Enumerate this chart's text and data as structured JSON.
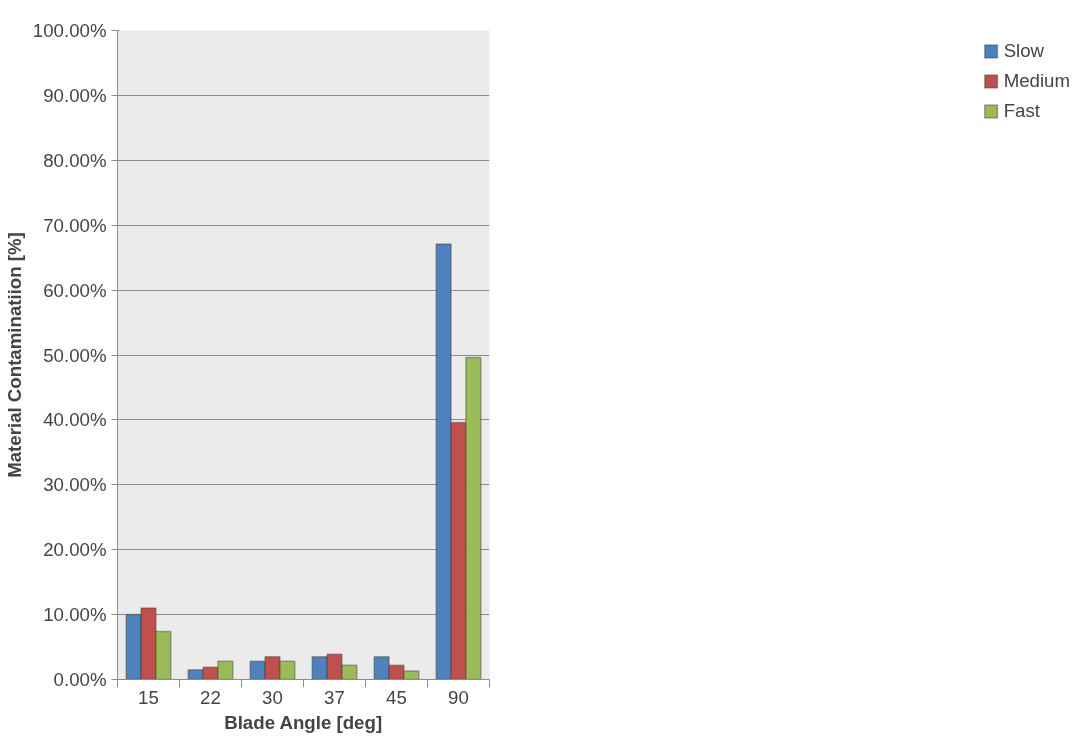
{
  "chart_data": {
    "type": "bar",
    "xlabel": "Blade Angle [deg]",
    "ylabel": "Material Contaminatiion [%]",
    "categories": [
      "15",
      "22",
      "30",
      "37",
      "45",
      "90"
    ],
    "series": [
      {
        "name": "Slow",
        "color": "#4f81bd",
        "values": [
          10.0,
          1.5,
          2.8,
          3.5,
          3.5,
          67.1
        ]
      },
      {
        "name": "Medium",
        "color": "#c0504d",
        "values": [
          11.0,
          1.9,
          3.5,
          3.9,
          2.2,
          39.6
        ]
      },
      {
        "name": "Fast",
        "color": "#9bbb59",
        "values": [
          7.4,
          2.8,
          2.8,
          2.2,
          1.3,
          49.6
        ]
      }
    ],
    "ylim": [
      0,
      100
    ],
    "yticks": [
      {
        "value": 0,
        "label": "0.00%"
      },
      {
        "value": 10,
        "label": "10.00%"
      },
      {
        "value": 20,
        "label": "20.00%"
      },
      {
        "value": 30,
        "label": "30.00%"
      },
      {
        "value": 40,
        "label": "40.00%"
      },
      {
        "value": 50,
        "label": "50.00%"
      },
      {
        "value": 60,
        "label": "60.00%"
      },
      {
        "value": 70,
        "label": "70.00%"
      },
      {
        "value": 80,
        "label": "80.00%"
      },
      {
        "value": 90,
        "label": "90.00%"
      },
      {
        "value": 100,
        "label": "100.00%"
      }
    ],
    "grid": "y",
    "legend": "right"
  }
}
